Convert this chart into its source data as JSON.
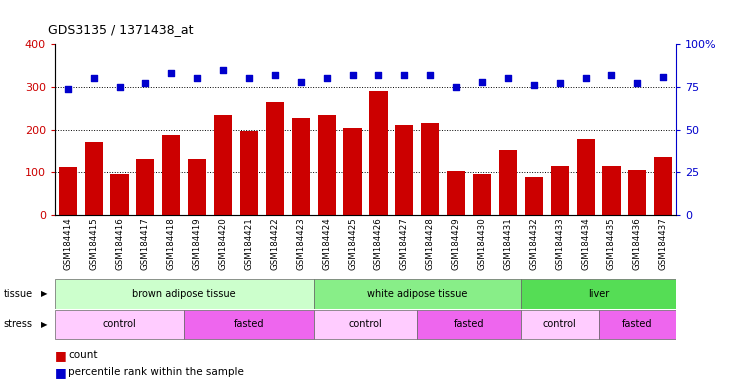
{
  "title": "GDS3135 / 1371438_at",
  "samples": [
    "GSM184414",
    "GSM184415",
    "GSM184416",
    "GSM184417",
    "GSM184418",
    "GSM184419",
    "GSM184420",
    "GSM184421",
    "GSM184422",
    "GSM184423",
    "GSM184424",
    "GSM184425",
    "GSM184426",
    "GSM184427",
    "GSM184428",
    "GSM184429",
    "GSM184430",
    "GSM184431",
    "GSM184432",
    "GSM184433",
    "GSM184434",
    "GSM184435",
    "GSM184436",
    "GSM184437"
  ],
  "bar_values": [
    112,
    172,
    95,
    132,
    187,
    132,
    235,
    196,
    265,
    228,
    234,
    204,
    290,
    210,
    215,
    102,
    95,
    152,
    90,
    115,
    178,
    114,
    105,
    137
  ],
  "dot_values": [
    74,
    80,
    75,
    77,
    83,
    80,
    85,
    80,
    82,
    78,
    80,
    82,
    82,
    82,
    82,
    75,
    78,
    80,
    76,
    77,
    80,
    82,
    77,
    81
  ],
  "bar_color": "#cc0000",
  "dot_color": "#0000cc",
  "left_ylim": [
    0,
    400
  ],
  "right_ylim": [
    0,
    100
  ],
  "left_yticks": [
    0,
    100,
    200,
    300,
    400
  ],
  "right_yticks": [
    0,
    25,
    50,
    75,
    100
  ],
  "right_yticklabels": [
    "0",
    "25",
    "50",
    "75",
    "100%"
  ],
  "grid_values": [
    100,
    200,
    300
  ],
  "tissue_groups": [
    {
      "label": "brown adipose tissue",
      "start": 0,
      "end": 10,
      "color": "#ccffcc"
    },
    {
      "label": "white adipose tissue",
      "start": 10,
      "end": 18,
      "color": "#88ee88"
    },
    {
      "label": "liver",
      "start": 18,
      "end": 24,
      "color": "#55dd55"
    }
  ],
  "stress_groups": [
    {
      "label": "control",
      "start": 0,
      "end": 5,
      "color": "#ffccff"
    },
    {
      "label": "fasted",
      "start": 5,
      "end": 10,
      "color": "#ee66ee"
    },
    {
      "label": "control",
      "start": 10,
      "end": 14,
      "color": "#ffccff"
    },
    {
      "label": "fasted",
      "start": 14,
      "end": 18,
      "color": "#ee66ee"
    },
    {
      "label": "control",
      "start": 18,
      "end": 21,
      "color": "#ffccff"
    },
    {
      "label": "fasted",
      "start": 21,
      "end": 24,
      "color": "#ee66ee"
    }
  ],
  "legend_count_color": "#cc0000",
  "legend_dot_color": "#0000cc",
  "background_color": "#ffffff",
  "axis_bg_color": "#ffffff"
}
